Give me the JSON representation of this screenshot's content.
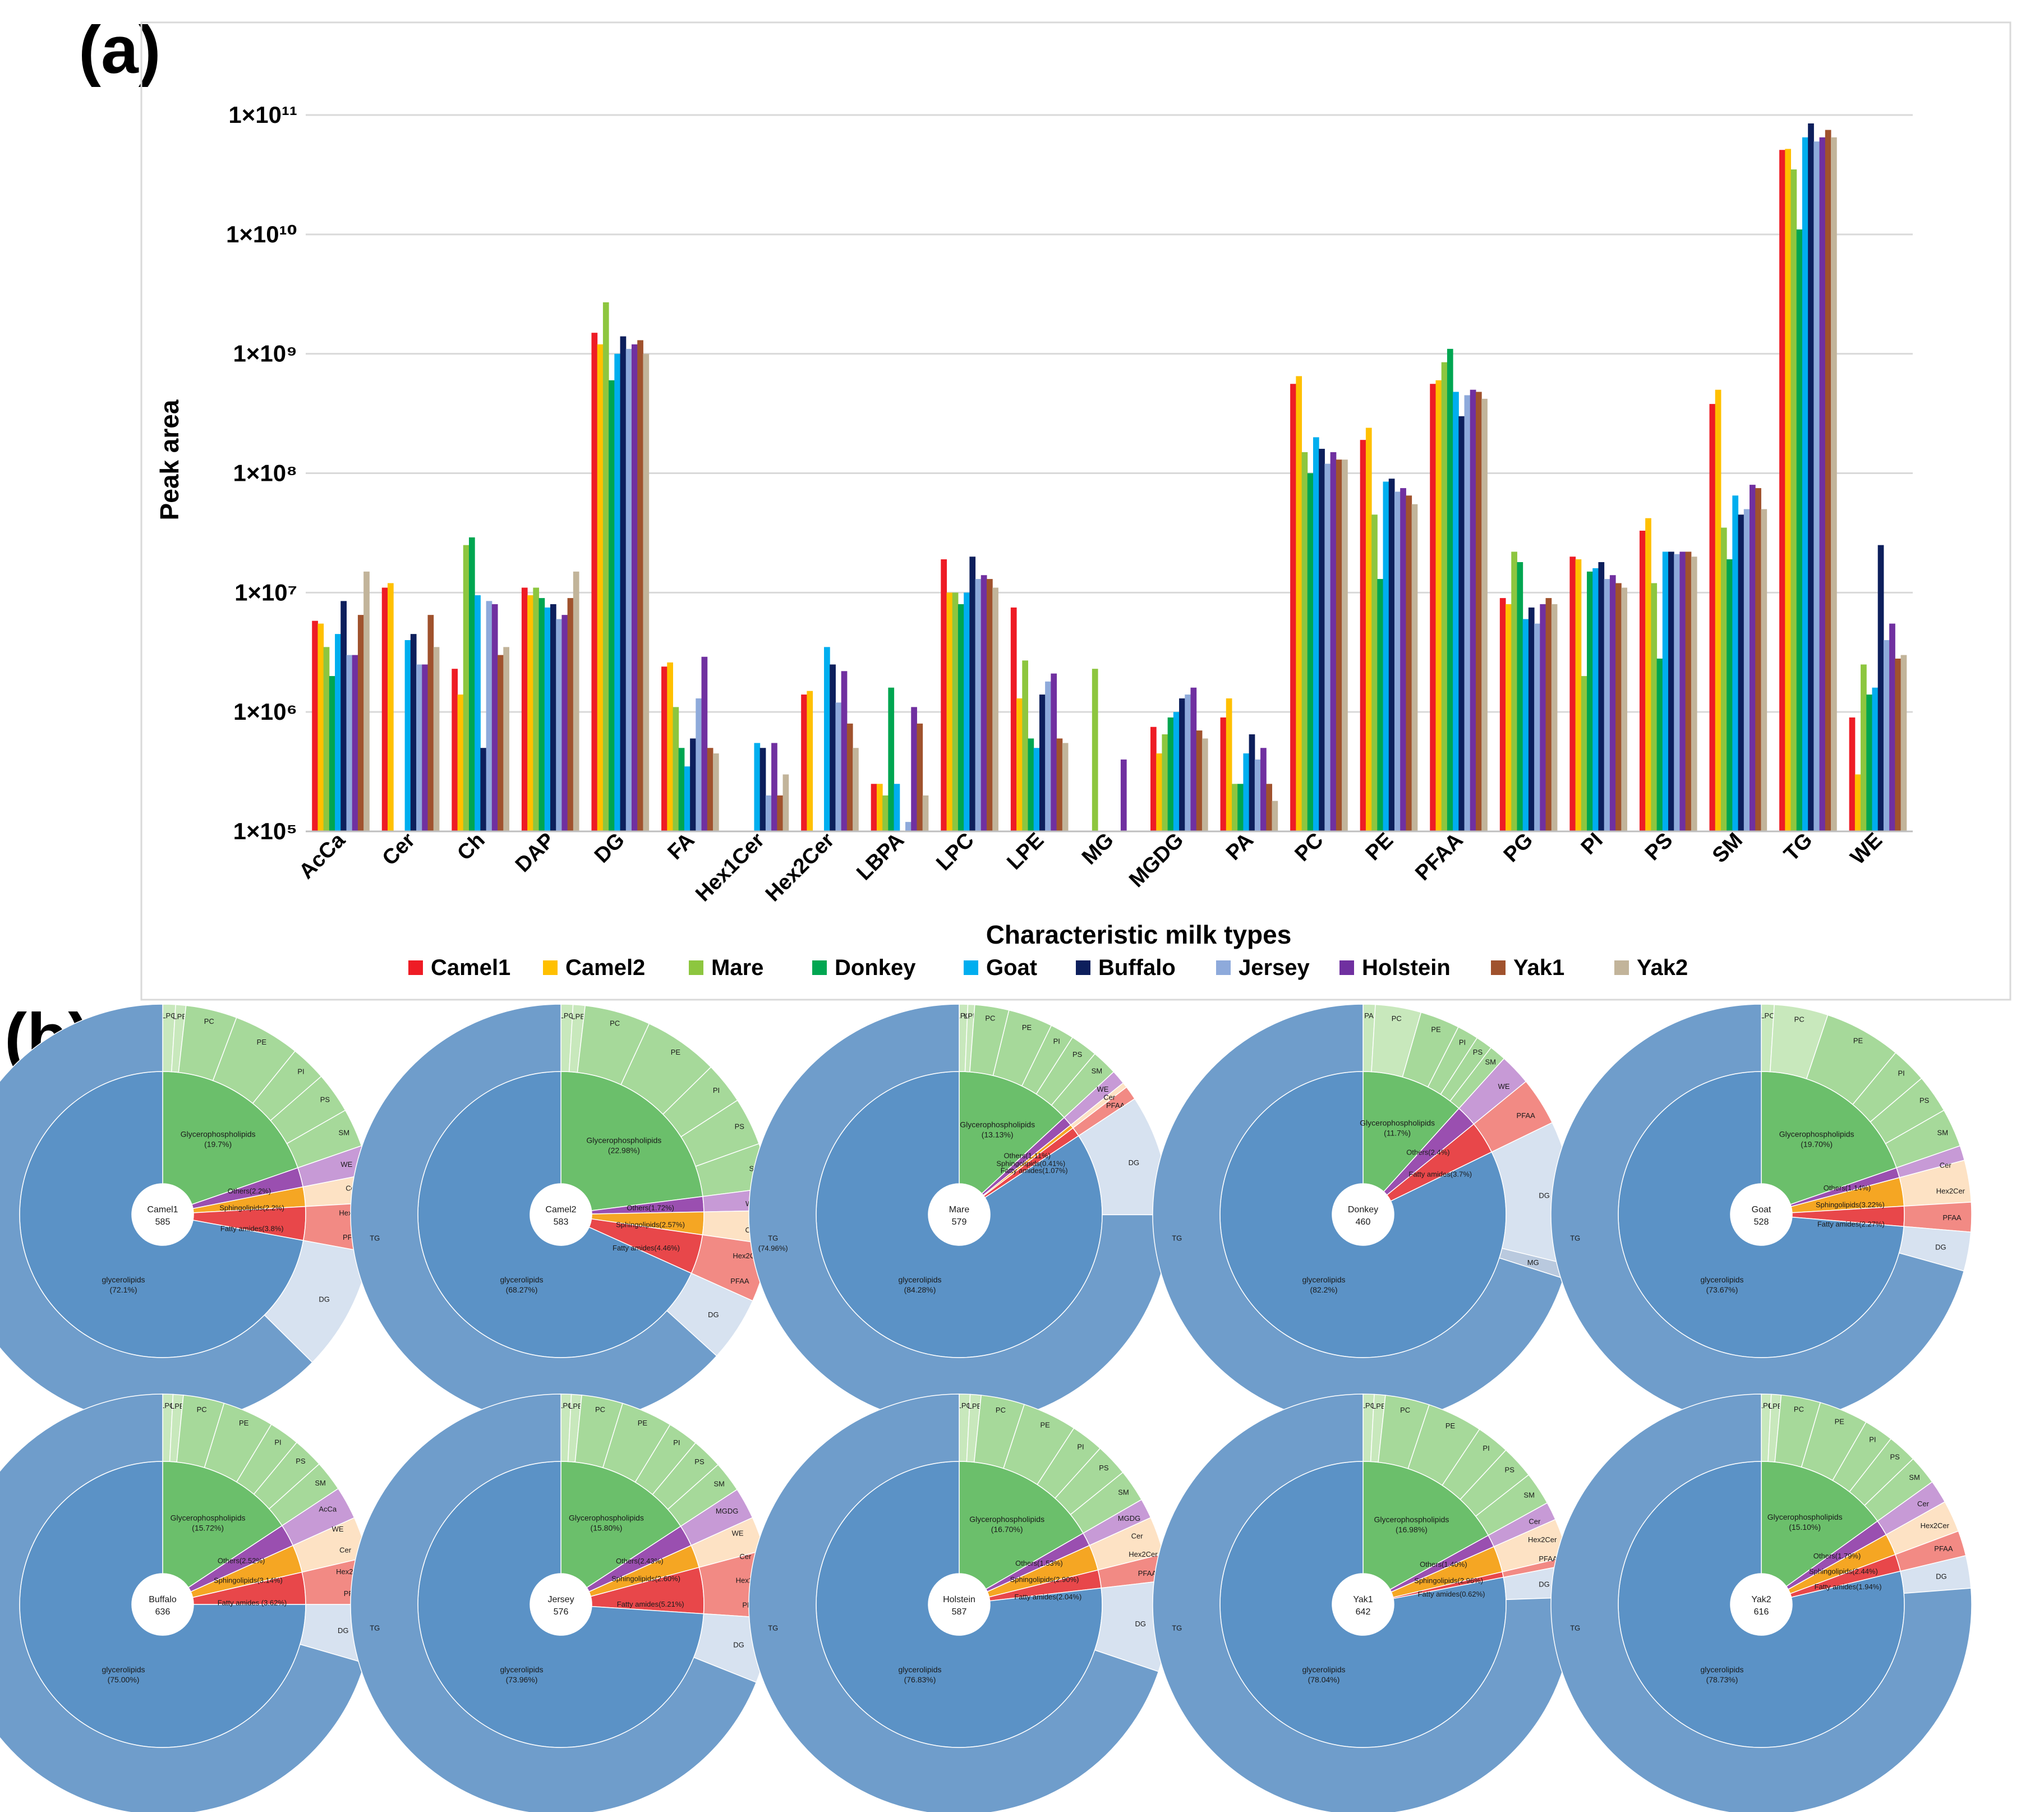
{
  "panel_a_label": "(a)",
  "panel_b_label": "(b)",
  "chart_data": [
    {
      "type": "bar",
      "title": "",
      "xlabel": "Characteristic milk types",
      "ylabel": "Peak area",
      "yscale": "log",
      "ylim": [
        100000,
        100000000000
      ],
      "yticks": [
        "1×10⁵",
        "1×10⁶",
        "1×10⁷",
        "1×10⁸",
        "1×10⁹",
        "1×10¹⁰",
        "1×10¹¹"
      ],
      "legend_position": "bottom",
      "categories": [
        "AcCa",
        "Cer",
        "Ch",
        "DAP",
        "DG",
        "FA",
        "Hex1Cer",
        "Hex2Cer",
        "LBPA",
        "LPC",
        "LPE",
        "MG",
        "MGDG",
        "PA",
        "PC",
        "PE",
        "PFAA",
        "PG",
        "PI",
        "PS",
        "SM",
        "TG",
        "WE"
      ],
      "series": [
        {
          "name": "Camel1",
          "color": "#ee1c25",
          "values": [
            5800000.0,
            11000000.0,
            2300000.0,
            11000000.0,
            1500000000.0,
            2400000.0,
            100000.0,
            1400000.0,
            250000.0,
            19000000.0,
            7500000.0,
            100000.0,
            750000.0,
            900000.0,
            560000000.0,
            190000000.0,
            560000000.0,
            9000000.0,
            20000000.0,
            33000000.0,
            380000000.0,
            51000000000.0,
            900000.0
          ]
        },
        {
          "name": "Camel2",
          "color": "#ffc000",
          "values": [
            5500000.0,
            12000000.0,
            1400000.0,
            9500000.0,
            1200000000.0,
            2600000.0,
            100000.0,
            1500000.0,
            250000.0,
            10000000.0,
            1300000.0,
            100000.0,
            450000.0,
            1300000.0,
            650000000.0,
            240000000.0,
            600000000.0,
            8000000.0,
            19000000.0,
            42000000.0,
            500000000.0,
            52000000000.0,
            300000.0
          ]
        },
        {
          "name": "Mare",
          "color": "#8dc63f",
          "values": [
            3500000.0,
            100000.0,
            25000000.0,
            11000000.0,
            2700000000.0,
            1100000.0,
            100000.0,
            100000.0,
            200000.0,
            10000000.0,
            2700000.0,
            2300000.0,
            650000.0,
            250000.0,
            150000000.0,
            45000000.0,
            850000000.0,
            22000000.0,
            2000000.0,
            12000000.0,
            35000000.0,
            35000000000.0,
            2500000.0
          ]
        },
        {
          "name": "Donkey",
          "color": "#00a651",
          "values": [
            2000000.0,
            100000.0,
            29000000.0,
            9000000.0,
            600000000.0,
            500000.0,
            100000.0,
            100000.0,
            1600000.0,
            8000000.0,
            600000.0,
            100000.0,
            900000.0,
            250000.0,
            100000000.0,
            13000000.0,
            1100000000.0,
            18000000.0,
            15000000.0,
            2800000.0,
            19000000.0,
            11000000000.0,
            1400000.0
          ]
        },
        {
          "name": "Goat",
          "color": "#00aeef",
          "values": [
            4500000.0,
            4000000.0,
            9500000.0,
            7500000.0,
            1000000000.0,
            350000.0,
            550000.0,
            3500000.0,
            250000.0,
            10000000.0,
            500000.0,
            100000.0,
            1000000.0,
            450000.0,
            200000000.0,
            85000000.0,
            480000000.0,
            6000000.0,
            16000000.0,
            22000000.0,
            65000000.0,
            65000000000.0,
            1600000.0
          ]
        },
        {
          "name": "Buffalo",
          "color": "#0d1f5c",
          "values": [
            8500000.0,
            4500000.0,
            500000.0,
            8000000.0,
            1400000000.0,
            600000.0,
            500000.0,
            2500000.0,
            100000.0,
            20000000.0,
            1400000.0,
            100000.0,
            1300000.0,
            650000.0,
            160000000.0,
            90000000.0,
            300000000.0,
            7500000.0,
            18000000.0,
            22000000.0,
            45000000.0,
            85000000000.0,
            25000000.0
          ]
        },
        {
          "name": "Jersey",
          "color": "#8eaadb",
          "values": [
            3000000.0,
            2500000.0,
            8500000.0,
            6000000.0,
            1100000000.0,
            1300000.0,
            200000.0,
            1200000.0,
            120000.0,
            13000000.0,
            1800000.0,
            100000.0,
            1400000.0,
            400000.0,
            120000000.0,
            70000000.0,
            450000000.0,
            5500000.0,
            13000000.0,
            21000000.0,
            50000000.0,
            60000000000.0,
            4000000.0
          ]
        },
        {
          "name": "Holstein",
          "color": "#7030a0",
          "values": [
            3000000.0,
            2500000.0,
            8000000.0,
            6500000.0,
            1200000000.0,
            2900000.0,
            550000.0,
            2200000.0,
            1100000.0,
            14000000.0,
            2100000.0,
            400000.0,
            1600000.0,
            500000.0,
            150000000.0,
            75000000.0,
            500000000.0,
            8000000.0,
            14000000.0,
            22000000.0,
            80000000.0,
            65000000000.0,
            5500000.0
          ]
        },
        {
          "name": "Yak1",
          "color": "#a0522d",
          "values": [
            6500000.0,
            6500000.0,
            3000000.0,
            9000000.0,
            1300000000.0,
            500000.0,
            200000.0,
            800000.0,
            800000.0,
            13000000.0,
            600000.0,
            100000.0,
            700000.0,
            250000.0,
            130000000.0,
            65000000.0,
            480000000.0,
            9000000.0,
            12000000.0,
            22000000.0,
            75000000.0,
            75000000000.0,
            2800000.0
          ]
        },
        {
          "name": "Yak2",
          "color": "#c2b49a",
          "values": [
            15000000.0,
            3500000.0,
            3500000.0,
            15000000.0,
            1000000000.0,
            450000.0,
            300000.0,
            500000.0,
            200000.0,
            11000000.0,
            550000.0,
            100000.0,
            600000.0,
            180000.0,
            130000000.0,
            55000000.0,
            420000000.0,
            8000000.0,
            11000000.0,
            20000000.0,
            50000000.0,
            65000000000.0,
            3000000.0
          ]
        }
      ]
    },
    {
      "type": "sunburst",
      "inner_ring_labels": [
        "Glycerophospholipids",
        "glycerolipids",
        "Others",
        "Sphingolipids",
        "Fatty amides"
      ],
      "charts": [
        {
          "name": "Camel1",
          "count": "585",
          "glycerophospholipids": "(19.7%)",
          "glycerolipids": "(72.1%)",
          "others": "Others(2.2%)",
          "sphingolipids": "Sphingolipids(2.2%)",
          "fatty_amides": "Fatty amides(3.8%)",
          "inner": [
            19.7,
            2.2,
            2.2,
            3.8,
            72.1
          ],
          "gp_labels": [
            "LPC",
            "LPE",
            "PC",
            "PE",
            "PI",
            "PS",
            "SM"
          ],
          "gp_fracs": [
            0.05,
            0.04,
            0.2,
            0.26,
            0.14,
            0.16,
            0.15
          ],
          "outer_side": [
            "WE",
            "Cer",
            "Hex2Cer",
            "PFAA"
          ],
          "tg": "TG",
          "dg": "DG",
          "dg_pct": 9.5,
          "mg": ""
        },
        {
          "name": "Camel2",
          "count": "583",
          "glycerophospholipids": "(22.98%)",
          "glycerolipids": "(68.27%)",
          "others": "Others(1.72%)",
          "sphingolipids": "Sphingolipids(2.57%)",
          "fatty_amides": "Fatty amides(4.46%)",
          "inner": [
            22.98,
            1.72,
            2.57,
            4.46,
            68.27
          ],
          "gp_labels": [
            "LPC",
            "LPE",
            "PC",
            "PE",
            "PI",
            "PS",
            "SM"
          ],
          "gp_fracs": [
            0.04,
            0.04,
            0.22,
            0.25,
            0.14,
            0.16,
            0.15
          ],
          "outer_side": [
            "WE",
            "Cer",
            "Hex2Cer",
            "PFAA"
          ],
          "tg": "TG",
          "dg": "DG",
          "dg_pct": 5,
          "mg": ""
        },
        {
          "name": "Mare",
          "count": "579",
          "glycerophospholipids": "(13.13%)",
          "glycerolipids": "(84.28%)",
          "others": "Others(1.11%)",
          "sphingolipids": "Sphingolipids(0.41%)",
          "fatty_amides": "Fatty amides(1.07%)",
          "inner": [
            13.13,
            1.11,
            0.41,
            1.07,
            84.28
          ],
          "gp_labels": [
            "LPC",
            "LPE",
            "PC",
            "PE",
            "PI",
            "PS",
            "SM"
          ],
          "gp_fracs": [
            0.05,
            0.04,
            0.2,
            0.26,
            0.14,
            0.16,
            0.15
          ],
          "outer_side": [
            "WE",
            "Cer",
            "PFAA"
          ],
          "tg": "TG\n(74.96%)",
          "dg": "DG",
          "dg_pct": 9.3,
          "mg": ""
        },
        {
          "name": "Donkey",
          "count": "460",
          "glycerophospholipids": "(11.7%)",
          "glycerolipids": "(82.2%)",
          "others": "Others(2.4%)",
          "sphingolipids": "",
          "fatty_amides": "Fatty amides(3.7%)",
          "inner": [
            11.7,
            2.4,
            0,
            3.7,
            82.2
          ],
          "gp_labels": [
            "PA",
            "PC",
            "PE",
            "PI",
            "PS",
            "SM"
          ],
          "gp_fracs": [
            0.08,
            0.3,
            0.26,
            0.14,
            0.11,
            0.11
          ],
          "outer_side": [
            "WE",
            "PFAA"
          ],
          "tg": "TG",
          "dg": "DG",
          "dg_pct": 11,
          "mg": "MG"
        },
        {
          "name": "Goat",
          "count": "528",
          "glycerophospholipids": "(19.70%)",
          "glycerolipids": "(73.67%)",
          "others": "Others(1.14%)",
          "sphingolipids": "Sphingolipids(3.22%)",
          "fatty_amides": "Fatty amides(2.27%)",
          "inner": [
            19.7,
            1.14,
            3.22,
            2.27,
            73.67
          ],
          "gp_labels": [
            "LPC",
            "PC",
            "PE",
            "PI",
            "PS",
            "SM"
          ],
          "gp_fracs": [
            0.05,
            0.21,
            0.3,
            0.14,
            0.15,
            0.15
          ],
          "outer_side": [
            "Cer",
            "Hex2Cer",
            "PFAA"
          ],
          "tg": "TG",
          "dg": "DG",
          "dg_pct": 3,
          "mg": ""
        },
        {
          "name": "Buffalo",
          "count": "636",
          "glycerophospholipids": "(15.72%)",
          "glycerolipids": "(75.00%)",
          "others": "Others(2.52%)",
          "sphingolipids": "Sphingolipids(3.14%)",
          "fatty_amides": "Fatty amides (3.62%)",
          "inner": [
            15.72,
            2.52,
            3.14,
            3.62,
            75.0
          ],
          "gp_labels": [
            "LPC",
            "LPE",
            "PC",
            "PE",
            "PI",
            "PS",
            "SM"
          ],
          "gp_fracs": [
            0.05,
            0.05,
            0.2,
            0.25,
            0.15,
            0.15,
            0.15
          ],
          "outer_side": [
            "AcCa",
            "WE",
            "Cer",
            "Hex2Cer",
            "PFAA"
          ],
          "tg": "TG",
          "dg": "DG",
          "dg_pct": 4.5,
          "mg": ""
        },
        {
          "name": "Jersey",
          "count": "576",
          "glycerophospholipids": "(15.80%)",
          "glycerolipids": "(73.96%)",
          "others": "Others(2.43%)",
          "sphingolipids": "Sphingolipids(2.60%)",
          "fatty_amides": "Fatty amides(5.21%)",
          "inner": [
            15.8,
            2.43,
            2.6,
            5.21,
            73.96
          ],
          "gp_labels": [
            "LPC",
            "LPE",
            "PC",
            "PE",
            "PI",
            "PS",
            "SM"
          ],
          "gp_fracs": [
            0.05,
            0.05,
            0.2,
            0.25,
            0.15,
            0.15,
            0.15
          ],
          "outer_side": [
            "MGDG",
            "WE",
            "Cer",
            "Hex2Cer",
            "PFAA"
          ],
          "tg": "TG",
          "dg": "DG",
          "dg_pct": 5,
          "mg": ""
        },
        {
          "name": "Holstein",
          "count": "587",
          "glycerophospholipids": "(16.70%)",
          "glycerolipids": "(76.83%)",
          "others": "Others(1.53%)",
          "sphingolipids": "Sphingolipids(2.90%)",
          "fatty_amides": "Fatty amides(2.04%)",
          "inner": [
            16.7,
            1.53,
            2.9,
            2.04,
            76.83
          ],
          "gp_labels": [
            "LPC",
            "LPE",
            "PC",
            "PE",
            "PI",
            "PS",
            "SM"
          ],
          "gp_fracs": [
            0.05,
            0.05,
            0.2,
            0.25,
            0.15,
            0.15,
            0.15
          ],
          "outer_side": [
            "MGDG",
            "Cer",
            "Hex2Cer",
            "PFAA"
          ],
          "tg": "TG",
          "dg": "DG",
          "dg_pct": 7,
          "mg": ""
        },
        {
          "name": "Yak1",
          "count": "642",
          "glycerophospholipids": "(16.98%)",
          "glycerolipids": "(78.04%)",
          "others": "Others(1.40%)",
          "sphingolipids": "Sphingolipids(2.96%)",
          "fatty_amides": "Fatty amides(0.62%)",
          "inner": [
            16.98,
            1.4,
            2.96,
            0.62,
            78.04
          ],
          "gp_labels": [
            "LPC",
            "LPE",
            "PC",
            "PE",
            "PI",
            "PS",
            "SM"
          ],
          "gp_fracs": [
            0.05,
            0.05,
            0.2,
            0.25,
            0.15,
            0.15,
            0.15
          ],
          "outer_side": [
            "Cer",
            "Hex2Cer",
            "PFAA"
          ],
          "tg": "TG",
          "dg": "DG",
          "dg_pct": 2.5,
          "mg": ""
        },
        {
          "name": "Yak2",
          "count": "616",
          "glycerophospholipids": "(15.10%)",
          "glycerolipids": "(78.73%)",
          "others": "Others(1.79%)",
          "sphingolipids": "Sphingolipids(2.44%)",
          "fatty_amides": "Fatty amides(1.94%)",
          "inner": [
            15.1,
            1.79,
            2.44,
            1.94,
            78.73
          ],
          "gp_labels": [
            "LPC",
            "LPE",
            "PC",
            "PE",
            "PI",
            "PS",
            "SM"
          ],
          "gp_fracs": [
            0.05,
            0.05,
            0.2,
            0.25,
            0.15,
            0.15,
            0.15
          ],
          "outer_side": [
            "Cer",
            "Hex2Cer",
            "PFAA"
          ],
          "tg": "TG",
          "dg": "DG",
          "dg_pct": 2.5,
          "mg": ""
        }
      ]
    }
  ]
}
